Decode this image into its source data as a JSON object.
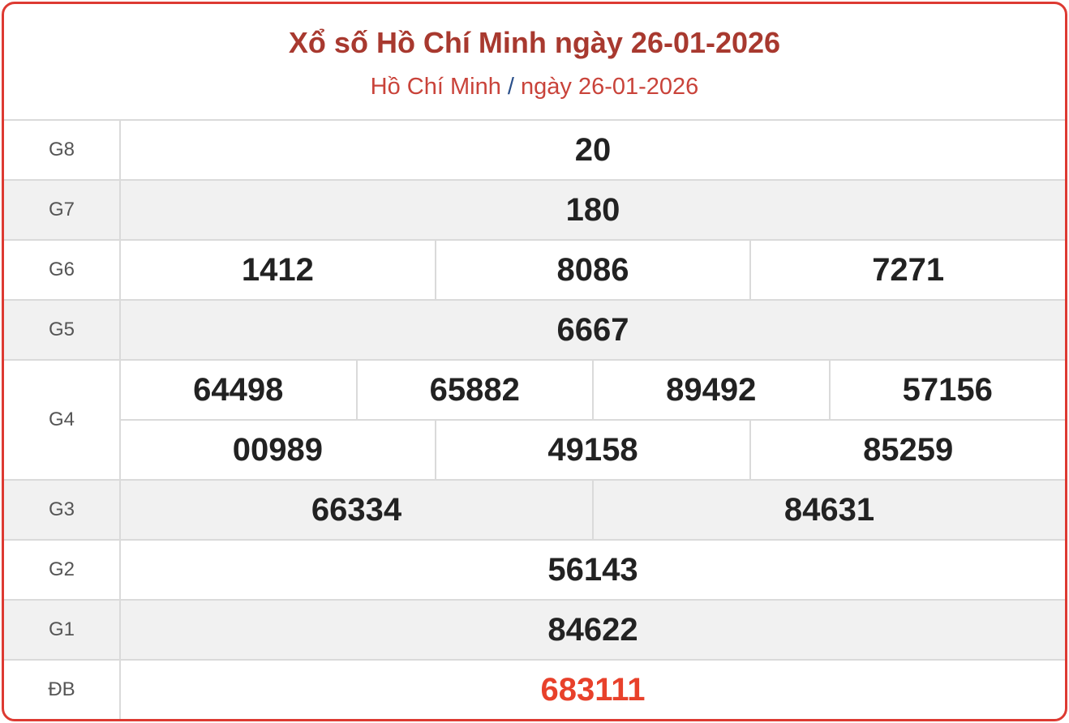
{
  "header": {
    "title": "Xổ số Hồ Chí Minh ngày 26-01-2026",
    "breadcrumb_city": "Hồ Chí Minh",
    "breadcrumb_separator": "/",
    "breadcrumb_date": "ngày 26-01-2026"
  },
  "colors": {
    "border": "#dd3a32",
    "title": "#a8392f",
    "special_prize": "#e8412b"
  },
  "prizes": [
    {
      "label": "G8",
      "rows": [
        [
          "20"
        ]
      ]
    },
    {
      "label": "G7",
      "rows": [
        [
          "180"
        ]
      ]
    },
    {
      "label": "G6",
      "rows": [
        [
          "1412",
          "8086",
          "7271"
        ]
      ]
    },
    {
      "label": "G5",
      "rows": [
        [
          "6667"
        ]
      ]
    },
    {
      "label": "G4",
      "rows": [
        [
          "64498",
          "65882",
          "89492",
          "57156"
        ],
        [
          "00989",
          "49158",
          "85259"
        ]
      ]
    },
    {
      "label": "G3",
      "rows": [
        [
          "66334",
          "84631"
        ]
      ]
    },
    {
      "label": "G2",
      "rows": [
        [
          "56143"
        ]
      ]
    },
    {
      "label": "G1",
      "rows": [
        [
          "84622"
        ]
      ]
    },
    {
      "label": "ĐB",
      "rows": [
        [
          "683111"
        ]
      ]
    }
  ]
}
